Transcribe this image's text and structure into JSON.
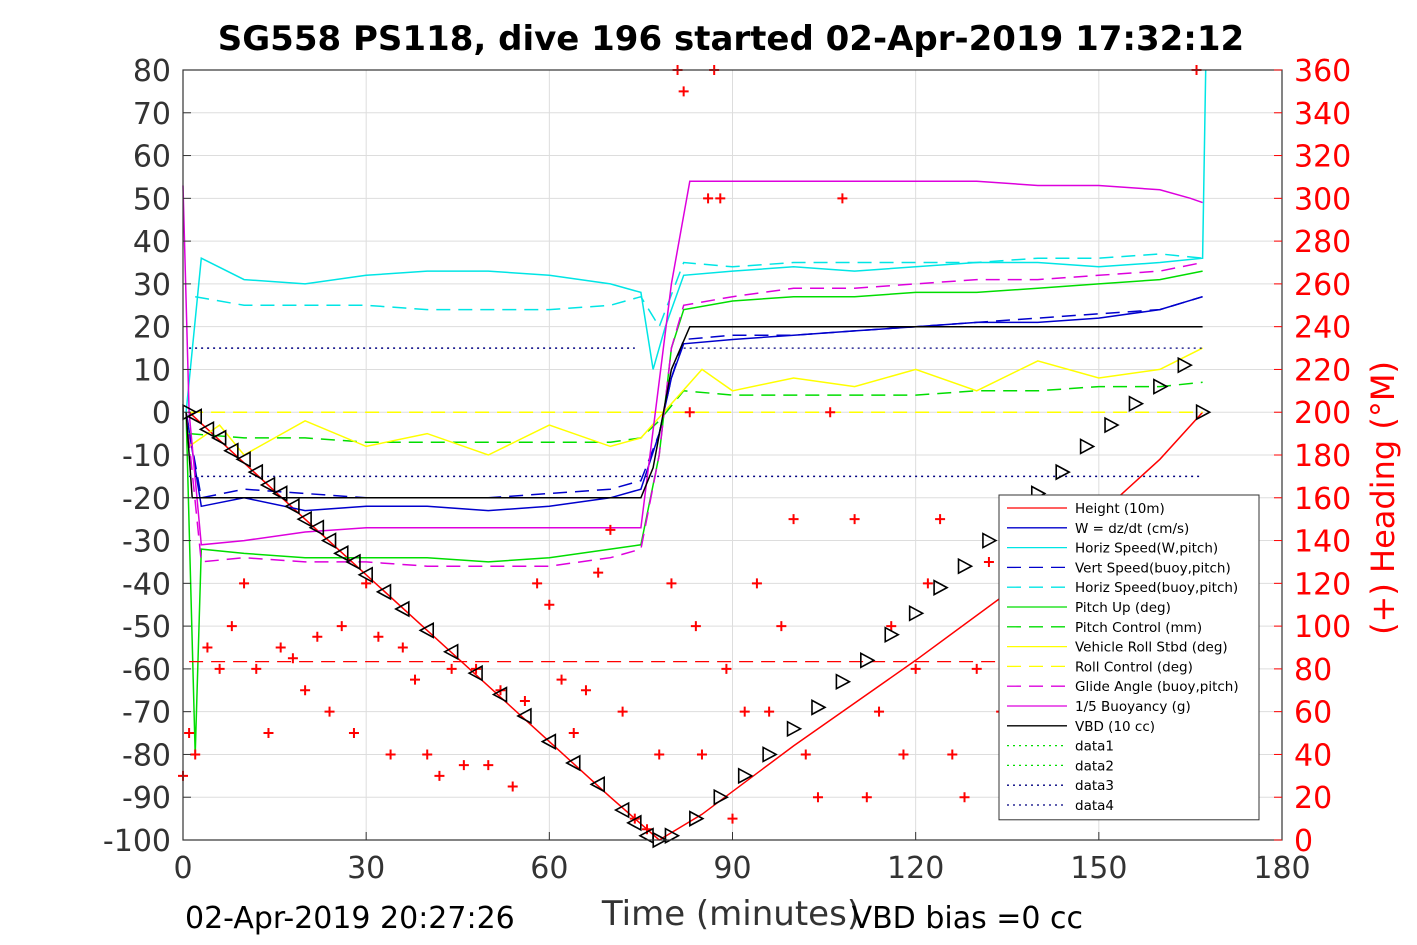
{
  "chart_data": {
    "type": "line",
    "title": "SG558 PS118, dive 196 started 02-Apr-2019 17:32:12",
    "xlabel": "Time (minutes)",
    "ylabel": "",
    "y2label": "(+) Heading (°M)",
    "xlim": [
      0,
      180
    ],
    "ylim": [
      -100,
      80
    ],
    "y2lim": [
      0,
      360
    ],
    "xticks": [
      0,
      30,
      60,
      90,
      120,
      150,
      180
    ],
    "yticks": [
      -100,
      -90,
      -80,
      -70,
      -60,
      -50,
      -40,
      -30,
      -20,
      -10,
      0,
      10,
      20,
      30,
      40,
      50,
      60,
      70,
      80
    ],
    "y2ticks": [
      0,
      20,
      40,
      60,
      80,
      100,
      120,
      140,
      160,
      180,
      200,
      220,
      240,
      260,
      280,
      300,
      320,
      340,
      360
    ],
    "grid": true,
    "legend_position": "bottom-right",
    "footer_left": "02-Apr-2019 20:27:26",
    "footer_right": "VBD bias =0 cc",
    "colors": {
      "red": "#ff0000",
      "blue": "#0000cc",
      "cyan": "#00e5e5",
      "green": "#00dd00",
      "yellow": "#ffff00",
      "magenta": "#dd00dd",
      "black": "#000000",
      "navy": "#000080"
    },
    "series": [
      {
        "name": "Height (10m)",
        "color": "#ff0000",
        "style": "solid",
        "x": [
          1,
          20,
          40,
          60,
          70,
          78,
          85,
          100,
          120,
          140,
          160,
          167
        ],
        "y": [
          0,
          -25,
          -51,
          -77,
          -90,
          -100,
          -94,
          -78,
          -58,
          -37,
          -11,
          0
        ]
      },
      {
        "name": "W = dz/dt (cm/s)",
        "color": "#0000cc",
        "style": "solid",
        "x": [
          0.5,
          3,
          10,
          20,
          30,
          40,
          50,
          60,
          70,
          75,
          78,
          80,
          82,
          90,
          100,
          110,
          120,
          130,
          140,
          150,
          160,
          167
        ],
        "y": [
          0,
          -22,
          -20,
          -23,
          -22,
          -22,
          -23,
          -22,
          -20,
          -18,
          -5,
          8,
          16,
          17,
          18,
          19,
          20,
          21,
          21,
          22,
          24,
          27
        ]
      },
      {
        "name": "Horiz Speed(W,pitch)",
        "color": "#00e5e5",
        "style": "solid",
        "x": [
          0.5,
          3,
          10,
          20,
          30,
          40,
          50,
          60,
          70,
          75,
          77,
          79,
          82,
          90,
          100,
          110,
          120,
          130,
          140,
          150,
          160,
          167,
          167.5
        ],
        "y": [
          0,
          36,
          31,
          30,
          32,
          33,
          33,
          32,
          30,
          28,
          10,
          20,
          32,
          33,
          34,
          33,
          34,
          35,
          35,
          34,
          35,
          36,
          80
        ]
      },
      {
        "name": "Vert Speed(buoy,pitch)",
        "color": "#0000cc",
        "style": "dashed",
        "x": [
          0.5,
          3,
          10,
          20,
          30,
          40,
          50,
          60,
          70,
          75,
          78,
          80,
          82,
          90,
          100,
          110,
          120,
          130,
          140,
          150,
          160,
          167
        ],
        "y": [
          0,
          -20,
          -18,
          -19,
          -20,
          -20,
          -20,
          -19,
          -18,
          -16,
          -5,
          8,
          17,
          18,
          18,
          19,
          20,
          21,
          22,
          23,
          24,
          27
        ]
      },
      {
        "name": "Horiz Speed(buoy,pitch)",
        "color": "#00e5e5",
        "style": "dashed",
        "x": [
          2,
          10,
          20,
          30,
          40,
          50,
          60,
          70,
          75,
          78,
          82,
          90,
          100,
          110,
          120,
          130,
          140,
          150,
          160,
          167
        ],
        "y": [
          27,
          25,
          25,
          25,
          24,
          24,
          24,
          25,
          27,
          20,
          35,
          34,
          35,
          35,
          35,
          35,
          36,
          36,
          37,
          36
        ]
      },
      {
        "name": "Pitch Up (deg)",
        "color": "#00dd00",
        "style": "solid",
        "x": [
          0.5,
          2,
          3,
          10,
          20,
          30,
          40,
          50,
          60,
          70,
          75,
          78,
          80,
          82,
          90,
          100,
          110,
          120,
          130,
          140,
          150,
          160,
          167
        ],
        "y": [
          0,
          -80,
          -32,
          -33,
          -34,
          -34,
          -34,
          -35,
          -34,
          -32,
          -31,
          -10,
          15,
          24,
          26,
          27,
          27,
          28,
          28,
          29,
          30,
          31,
          33
        ]
      },
      {
        "name": "Pitch Control (mm)",
        "color": "#00dd00",
        "style": "dashed",
        "x": [
          1,
          10,
          20,
          30,
          40,
          50,
          60,
          70,
          75,
          78,
          82,
          90,
          100,
          110,
          120,
          130,
          140,
          150,
          160,
          167
        ],
        "y": [
          -5,
          -6,
          -6,
          -7,
          -7,
          -7,
          -7,
          -7,
          -6,
          -2,
          5,
          4,
          4,
          4,
          4,
          5,
          5,
          6,
          6,
          7
        ]
      },
      {
        "name": "Vehicle Roll Stbd (deg)",
        "color": "#ffff00",
        "style": "solid",
        "x": [
          1,
          6,
          10,
          20,
          30,
          40,
          50,
          60,
          70,
          75,
          80,
          85,
          90,
          100,
          110,
          120,
          130,
          140,
          150,
          160,
          167
        ],
        "y": [
          -8,
          -3,
          -10,
          -2,
          -8,
          -5,
          -10,
          -3,
          -8,
          -6,
          2,
          10,
          5,
          8,
          6,
          10,
          5,
          12,
          8,
          10,
          15
        ]
      },
      {
        "name": "Roll Control (deg)",
        "color": "#ffff00",
        "style": "dashed",
        "x": [
          1,
          20,
          40,
          60,
          75,
          80,
          100,
          120,
          140,
          160,
          167
        ],
        "y": [
          0,
          0,
          0,
          0,
          0,
          0,
          0,
          0,
          0,
          0,
          0
        ]
      },
      {
        "name": "Glide Angle (buoy,pitch)",
        "color": "#dd00dd",
        "style": "dashed",
        "x": [
          0.5,
          3,
          10,
          20,
          30,
          40,
          50,
          60,
          70,
          75,
          78,
          80,
          82,
          90,
          100,
          110,
          120,
          130,
          140,
          150,
          160,
          167
        ],
        "y": [
          0,
          -35,
          -34,
          -35,
          -35,
          -36,
          -36,
          -36,
          -34,
          -32,
          -10,
          15,
          25,
          27,
          29,
          29,
          30,
          31,
          31,
          32,
          33,
          35
        ]
      },
      {
        "name": "1/5 Buoyancy (g)",
        "color": "#dd00dd",
        "style": "solid",
        "x": [
          0,
          1,
          3,
          10,
          20,
          30,
          40,
          50,
          60,
          70,
          75,
          80,
          83,
          90,
          100,
          110,
          120,
          130,
          140,
          150,
          160,
          165,
          167
        ],
        "y": [
          53,
          0,
          -31,
          -30,
          -28,
          -27,
          -27,
          -27,
          -27,
          -27,
          -27,
          30,
          54,
          54,
          54,
          54,
          54,
          54,
          53,
          53,
          52,
          50,
          49
        ]
      },
      {
        "name": "VBD (10 cc)",
        "color": "#000000",
        "style": "solid",
        "x": [
          0.5,
          1.5,
          3,
          75,
          77,
          80,
          83,
          167
        ],
        "y": [
          0,
          -20,
          -20,
          -20,
          -13,
          10,
          20,
          20
        ]
      },
      {
        "name": "data1",
        "color": "#00dd00",
        "style": "dotted",
        "x": [],
        "y": []
      },
      {
        "name": "data2",
        "color": "#00dd00",
        "style": "dotted",
        "x": [],
        "y": []
      },
      {
        "name": "data3",
        "color": "#000080",
        "style": "dotted",
        "x": [
          1,
          74
        ],
        "y": [
          15,
          15
        ]
      },
      {
        "name": "data4",
        "color": "#000080",
        "style": "dotted",
        "x": [
          1,
          167
        ],
        "y": [
          -15,
          -15
        ]
      }
    ],
    "extra_lines": [
      {
        "color": "#ff0000",
        "style": "dashed",
        "x": [
          1,
          167
        ],
        "y": [
          -58.3,
          -58.3
        ]
      },
      {
        "color": "#000080",
        "style": "dotted",
        "x": [
          82,
          167
        ],
        "y": [
          15,
          15
        ]
      }
    ],
    "heading": {
      "axis": "right",
      "color": "#ff0000",
      "marker": "+",
      "x": [
        0,
        1,
        2,
        4,
        6,
        8,
        10,
        12,
        14,
        16,
        18,
        20,
        22,
        24,
        26,
        28,
        30,
        32,
        34,
        36,
        38,
        40,
        42,
        44,
        46,
        48,
        50,
        52,
        54,
        56,
        58,
        60,
        62,
        64,
        66,
        68,
        70,
        72,
        74,
        76,
        78,
        80,
        81,
        82,
        83,
        84,
        85,
        86,
        87,
        88,
        89,
        90,
        92,
        94,
        96,
        98,
        100,
        102,
        104,
        106,
        108,
        110,
        112,
        114,
        116,
        118,
        120,
        122,
        124,
        126,
        128,
        130,
        132,
        134,
        136,
        138,
        140,
        142,
        144,
        146,
        148,
        150,
        152,
        154,
        156,
        158,
        160,
        162,
        164,
        166
      ],
      "y": [
        30,
        50,
        40,
        90,
        80,
        100,
        120,
        80,
        50,
        90,
        85,
        70,
        95,
        60,
        100,
        50,
        120,
        95,
        40,
        90,
        75,
        40,
        30,
        80,
        35,
        80,
        35,
        70,
        25,
        65,
        120,
        110,
        75,
        50,
        70,
        125,
        145,
        60,
        10,
        5,
        40,
        120,
        360,
        350,
        200,
        100,
        40,
        300,
        360,
        300,
        80,
        10,
        60,
        120,
        60,
        100,
        150,
        40,
        20,
        200,
        300,
        150,
        20,
        60,
        100,
        40,
        80,
        120,
        150,
        40,
        20,
        80,
        130,
        60,
        20,
        40,
        60,
        100,
        20,
        80,
        60,
        100,
        40,
        80,
        100,
        60,
        50,
        80,
        110,
        360
      ]
    },
    "markers": {
      "color": "#000000",
      "symbol": "triangle",
      "x": [
        1,
        2,
        4,
        6,
        8,
        10,
        12,
        14,
        16,
        18,
        20,
        22,
        24,
        26,
        28,
        30,
        33,
        36,
        40,
        44,
        48,
        52,
        56,
        60,
        64,
        68,
        72,
        74,
        76,
        78,
        80,
        84,
        88,
        92,
        96,
        100,
        104,
        108,
        112,
        116,
        120,
        124,
        128,
        132,
        136,
        140,
        144,
        148,
        152,
        156,
        160,
        164,
        167
      ],
      "y": [
        0,
        -1,
        -4,
        -6,
        -9,
        -11,
        -14,
        -17,
        -19,
        -22,
        -25,
        -27,
        -30,
        -33,
        -35,
        -38,
        -42,
        -46,
        -51,
        -56,
        -61,
        -66,
        -71,
        -77,
        -82,
        -87,
        -93,
        -96,
        -99,
        -100,
        -99,
        -95,
        -90,
        -85,
        -80,
        -74,
        -69,
        -63,
        -58,
        -52,
        -47,
        -41,
        -36,
        -30,
        -25,
        -19,
        -14,
        -8,
        -3,
        2,
        6,
        11,
        0
      ]
    }
  }
}
